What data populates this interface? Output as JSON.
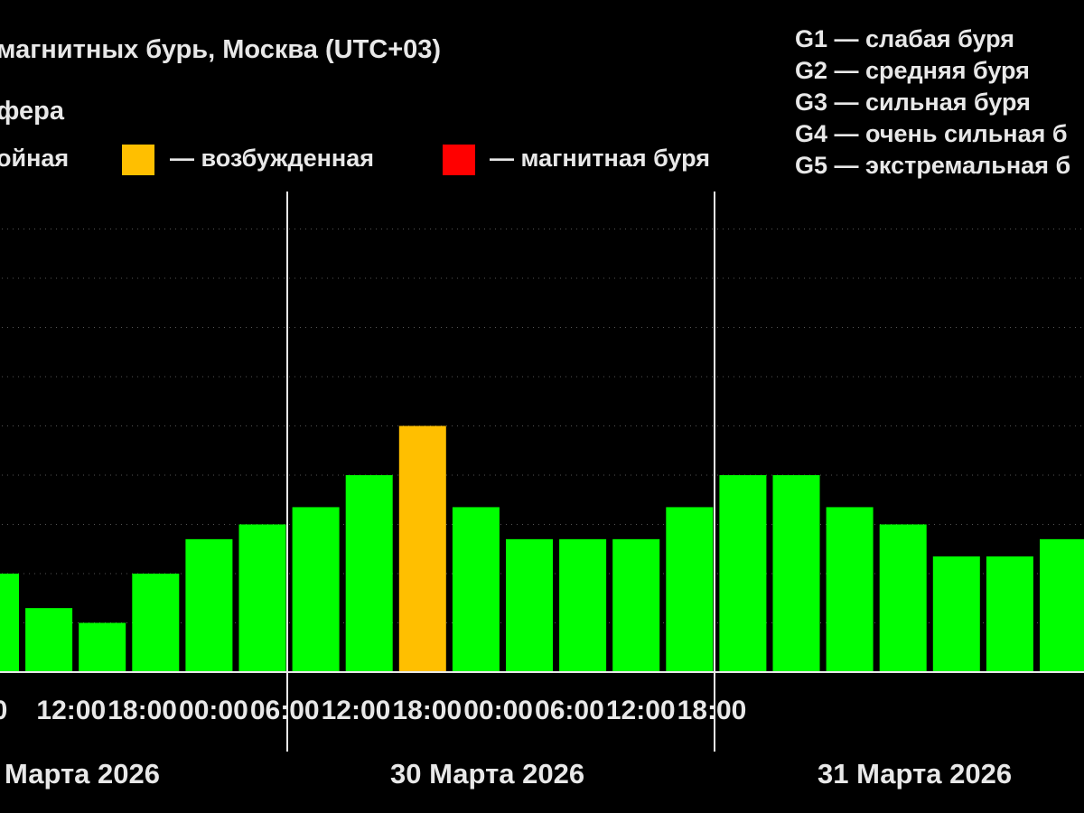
{
  "chart_data": {
    "type": "bar",
    "title": "магнитных бурь, Москва (UTC+03)",
    "subtitle": "фера",
    "legend": [
      {
        "label": "ойная",
        "color": "#00ff00"
      },
      {
        "label": "— возбужденная",
        "color": "#ffbf00"
      },
      {
        "label": "— магнитная буря",
        "color": "#ff0000"
      }
    ],
    "scale_legend": [
      "G1 — слабая буря",
      "G2 — средняя буря",
      "G3 — сильная буря",
      "G4 — очень сильная б",
      "G5 — экстремальная б"
    ],
    "ylim": [
      0,
      9
    ],
    "grid": true,
    "x_tick_labels": [
      "0",
      "12:00",
      "18:00",
      "00:00",
      "06:00",
      "12:00",
      "18:00",
      "00:00",
      "06:00",
      "12:00",
      "18:00"
    ],
    "day_labels": [
      "Марта 2026",
      "30 Марта 2026",
      "31 Марта 2026"
    ],
    "series": [
      {
        "values": [
          2,
          1.3,
          1,
          2,
          2.7,
          3,
          3.35,
          4,
          5,
          3.35,
          2.7,
          2.7,
          2.7,
          3.35,
          4,
          4,
          3.35,
          3,
          2.35,
          2.35,
          2.7
        ],
        "colors": [
          "#00ff00",
          "#00ff00",
          "#00ff00",
          "#00ff00",
          "#00ff00",
          "#00ff00",
          "#00ff00",
          "#00ff00",
          "#ffbf00",
          "#00ff00",
          "#00ff00",
          "#00ff00",
          "#00ff00",
          "#00ff00",
          "#00ff00",
          "#00ff00",
          "#00ff00",
          "#00ff00",
          "#00ff00",
          "#00ff00",
          "#00ff00"
        ]
      }
    ]
  }
}
